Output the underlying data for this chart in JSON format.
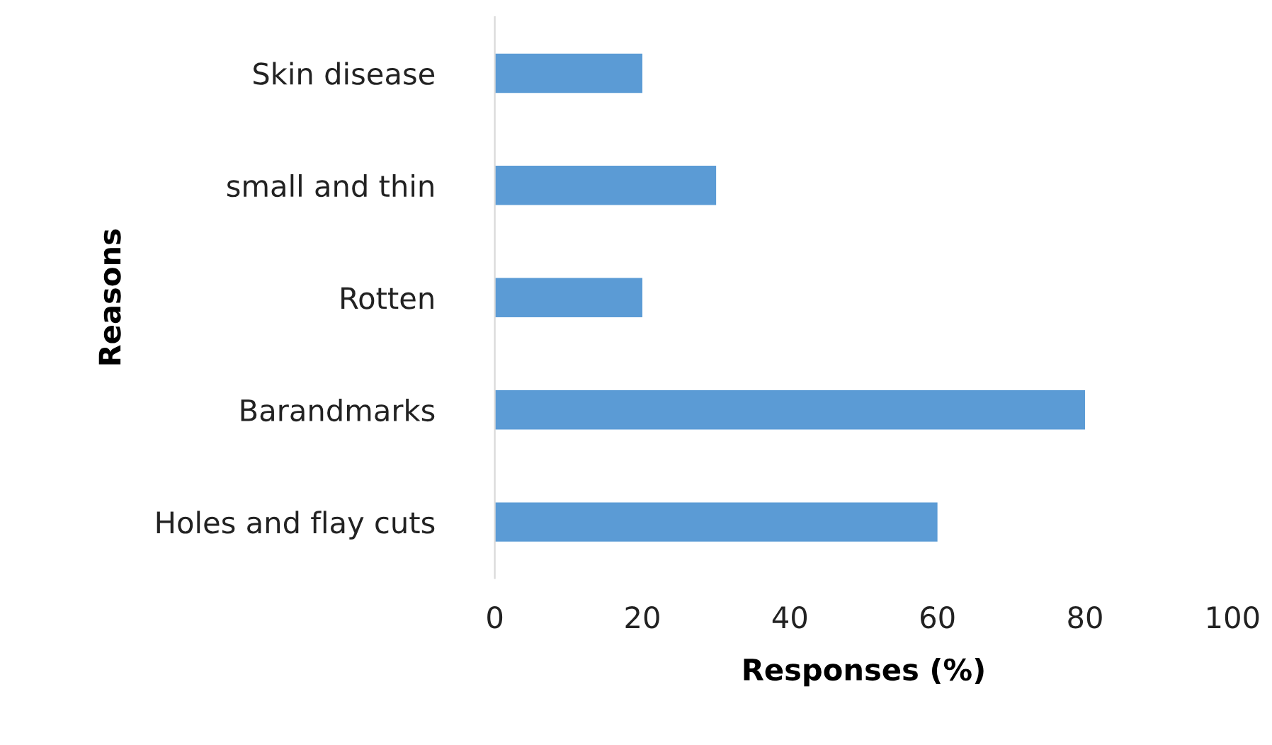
{
  "chart_data": {
    "type": "bar",
    "orientation": "horizontal",
    "xlabel": "Responses (%)",
    "ylabel": "Reasons",
    "categories": [
      "Skin disease",
      "small and thin",
      "Rotten",
      "Barandmarks",
      "Holes and flay cuts"
    ],
    "values": [
      20,
      30,
      20,
      80,
      60
    ],
    "color": "#5b9bd5",
    "xlim": [
      0,
      100
    ],
    "xticks": [
      0,
      20,
      40,
      60,
      80,
      100
    ],
    "grid": false,
    "legend": false
  }
}
